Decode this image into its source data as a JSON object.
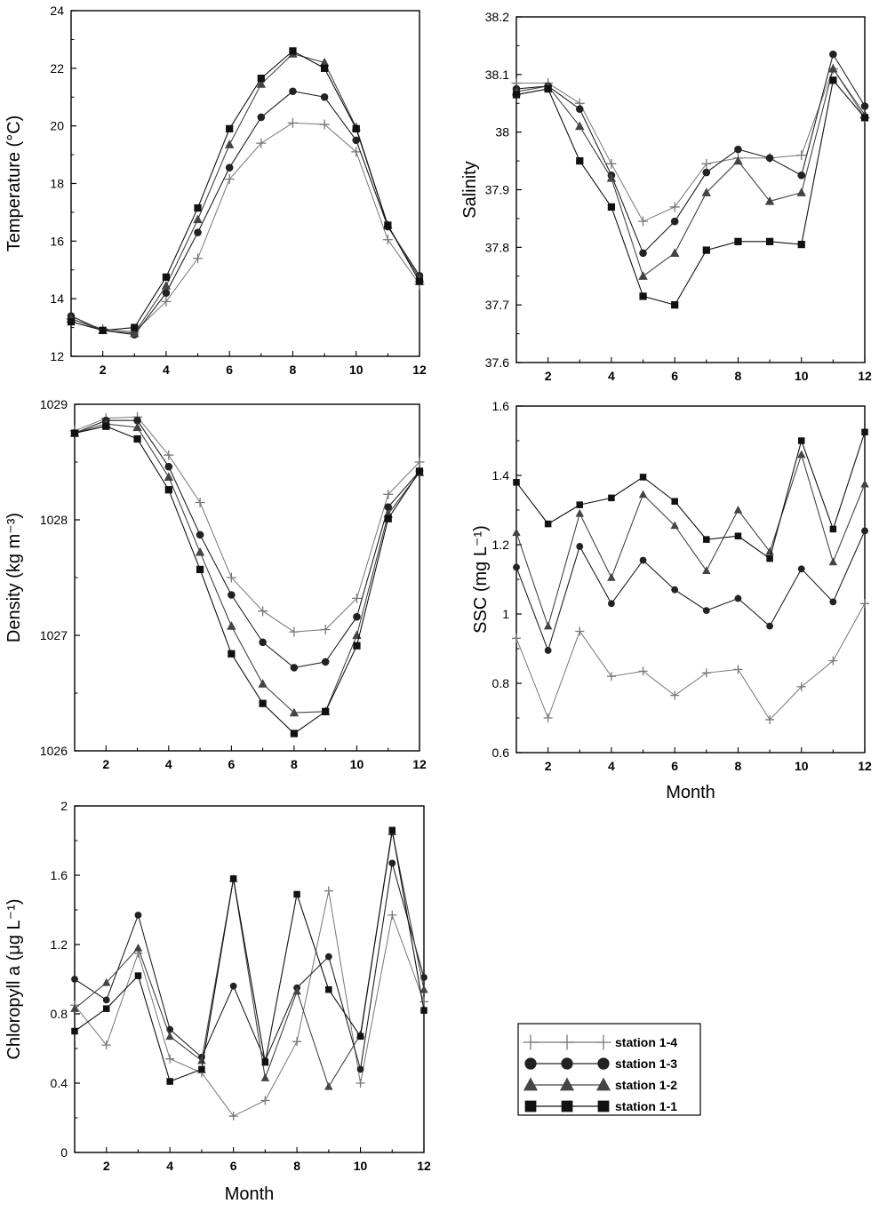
{
  "colors": {
    "axis": "#000000",
    "station_1_4": "#777777",
    "station_1_3": "#222222",
    "station_1_2": "#444444",
    "station_1_1": "#111111"
  },
  "legend": {
    "placement": "bottom-right",
    "entries": [
      {
        "label": "station 1-4",
        "marker": "plus"
      },
      {
        "label": "station 1-3",
        "marker": "circle"
      },
      {
        "label": "station 1-2",
        "marker": "triangle"
      },
      {
        "label": "station 1-1",
        "marker": "square"
      }
    ]
  },
  "chart_data": [
    {
      "type": "line",
      "ylabel": "Temperature (°C)",
      "xlabel": "",
      "ylim": [
        12,
        24
      ],
      "yticks": [
        "12",
        "14",
        "16",
        "18",
        "20",
        "22",
        "24"
      ],
      "xticks": [
        "2",
        "4",
        "6",
        "8",
        "10",
        "12"
      ],
      "x": [
        1,
        2,
        3,
        4,
        5,
        6,
        7,
        8,
        9,
        10,
        11,
        12
      ],
      "series": [
        {
          "name": "station 1-4",
          "marker": "plus",
          "values": [
            13.3,
            12.95,
            12.85,
            13.9,
            15.4,
            18.15,
            19.4,
            20.1,
            20.05,
            19.1,
            16.05,
            14.5
          ]
        },
        {
          "name": "station 1-3",
          "marker": "circle",
          "values": [
            13.4,
            12.9,
            12.75,
            14.2,
            16.3,
            18.55,
            20.3,
            21.2,
            21.0,
            19.5,
            16.5,
            14.8
          ]
        },
        {
          "name": "station 1-2",
          "marker": "triangle",
          "values": [
            13.3,
            12.9,
            12.8,
            14.45,
            16.75,
            19.35,
            21.45,
            22.5,
            22.2,
            19.95,
            16.55,
            14.7
          ]
        },
        {
          "name": "station 1-1",
          "marker": "square",
          "values": [
            13.2,
            12.9,
            13.0,
            14.75,
            17.15,
            19.9,
            21.65,
            22.6,
            22.0,
            19.9,
            16.55,
            14.6
          ]
        }
      ]
    },
    {
      "type": "line",
      "ylabel": "Salinity",
      "xlabel": "",
      "ylim": [
        37.6,
        38.2
      ],
      "yticks": [
        "37.6",
        "37.7",
        "37.8",
        "37.9",
        "38",
        "38.1",
        "38.2"
      ],
      "xticks": [
        "2",
        "4",
        "6",
        "8",
        "10",
        "12"
      ],
      "x": [
        1,
        2,
        3,
        4,
        5,
        6,
        7,
        8,
        9,
        10,
        11,
        12
      ],
      "series": [
        {
          "name": "station 1-4",
          "marker": "plus",
          "values": [
            38.085,
            38.085,
            38.05,
            37.945,
            37.845,
            37.87,
            37.945,
            37.955,
            37.955,
            37.96,
            38.11,
            38.025
          ]
        },
        {
          "name": "station 1-3",
          "marker": "circle",
          "values": [
            38.075,
            38.08,
            38.04,
            37.925,
            37.79,
            37.845,
            37.93,
            37.97,
            37.955,
            37.925,
            38.135,
            38.045
          ]
        },
        {
          "name": "station 1-2",
          "marker": "triangle",
          "values": [
            38.07,
            38.08,
            38.01,
            37.92,
            37.75,
            37.79,
            37.895,
            37.95,
            37.88,
            37.895,
            38.11,
            38.03
          ]
        },
        {
          "name": "station 1-1",
          "marker": "square",
          "values": [
            38.065,
            38.075,
            37.95,
            37.87,
            37.715,
            37.7,
            37.795,
            37.81,
            37.81,
            37.805,
            38.09,
            38.025
          ]
        }
      ]
    },
    {
      "type": "line",
      "ylabel": "Density (kg m⁻³)",
      "xlabel": "",
      "ylim": [
        1026,
        1029
      ],
      "yticks": [
        "1026",
        "1027",
        "1028",
        "1029"
      ],
      "xticks": [
        "2",
        "4",
        "6",
        "8",
        "10",
        "12"
      ],
      "x": [
        1,
        2,
        3,
        4,
        5,
        6,
        7,
        8,
        9,
        10,
        11,
        12
      ],
      "series": [
        {
          "name": "station 1-4",
          "marker": "plus",
          "values": [
            1028.77,
            1028.88,
            1028.89,
            1028.56,
            1028.15,
            1027.5,
            1027.21,
            1027.03,
            1027.05,
            1027.32,
            1028.22,
            1028.5
          ]
        },
        {
          "name": "station 1-3",
          "marker": "circle",
          "values": [
            1028.75,
            1028.86,
            1028.86,
            1028.46,
            1027.87,
            1027.35,
            1026.94,
            1026.72,
            1026.77,
            1027.16,
            1028.11,
            1028.42
          ]
        },
        {
          "name": "station 1-2",
          "marker": "triangle",
          "values": [
            1028.75,
            1028.83,
            1028.8,
            1028.37,
            1027.72,
            1027.08,
            1026.58,
            1026.33,
            1026.34,
            1027.0,
            1028.05,
            1028.41
          ]
        },
        {
          "name": "station 1-1",
          "marker": "square",
          "values": [
            1028.75,
            1028.81,
            1028.7,
            1028.26,
            1027.57,
            1026.84,
            1026.41,
            1026.15,
            1026.34,
            1026.91,
            1028.01,
            1028.42
          ]
        }
      ]
    },
    {
      "type": "line",
      "ylabel": "SSC (mg L⁻¹)",
      "xlabel": "Month",
      "ylim": [
        0.6,
        1.6
      ],
      "yticks": [
        "0.6",
        "0.8",
        "1",
        "1.2",
        "1.4",
        "1.6"
      ],
      "xticks": [
        "2",
        "4",
        "6",
        "8",
        "10",
        "12"
      ],
      "x": [
        1,
        2,
        3,
        4,
        5,
        6,
        7,
        8,
        9,
        10,
        11,
        12
      ],
      "series": [
        {
          "name": "station 1-4",
          "marker": "plus",
          "values": [
            0.93,
            0.7,
            0.95,
            0.82,
            0.835,
            0.765,
            0.83,
            0.84,
            0.695,
            0.79,
            0.865,
            1.03
          ]
        },
        {
          "name": "station 1-3",
          "marker": "circle",
          "values": [
            1.135,
            0.895,
            1.195,
            1.03,
            1.155,
            1.07,
            1.01,
            1.045,
            0.965,
            1.13,
            1.035,
            1.24
          ]
        },
        {
          "name": "station 1-2",
          "marker": "triangle",
          "values": [
            1.235,
            0.965,
            1.29,
            1.105,
            1.345,
            1.255,
            1.125,
            1.3,
            1.18,
            1.46,
            1.15,
            1.375
          ]
        },
        {
          "name": "station 1-1",
          "marker": "square",
          "values": [
            1.38,
            1.26,
            1.315,
            1.335,
            1.395,
            1.325,
            1.215,
            1.225,
            1.16,
            1.5,
            1.245,
            1.525
          ]
        }
      ]
    },
    {
      "type": "line",
      "ylabel": "Chloropyll a (μg L⁻¹)",
      "xlabel": "Month",
      "ylim": [
        0,
        2
      ],
      "yticks": [
        "0",
        "0.4",
        "0.8",
        "1.2",
        "1.6",
        "2"
      ],
      "xticks": [
        "2",
        "4",
        "6",
        "8",
        "10",
        "12"
      ],
      "x": [
        1,
        2,
        3,
        4,
        5,
        6,
        7,
        8,
        9,
        10,
        11,
        12
      ],
      "series": [
        {
          "name": "station 1-4",
          "marker": "plus",
          "values": [
            0.85,
            0.62,
            1.15,
            0.54,
            0.46,
            0.21,
            0.3,
            0.64,
            1.51,
            0.4,
            1.37,
            0.87
          ]
        },
        {
          "name": "station 1-3",
          "marker": "circle",
          "values": [
            1.0,
            0.88,
            1.37,
            0.71,
            0.55,
            0.96,
            0.53,
            0.95,
            1.13,
            0.48,
            1.67,
            1.01
          ]
        },
        {
          "name": "station 1-2",
          "marker": "triangle",
          "values": [
            0.83,
            0.98,
            1.18,
            0.67,
            0.53,
            1.58,
            0.43,
            0.93,
            0.38,
            0.68,
            1.85,
            0.94
          ]
        },
        {
          "name": "station 1-1",
          "marker": "square",
          "values": [
            0.7,
            0.83,
            1.02,
            0.41,
            0.48,
            1.58,
            0.52,
            1.49,
            0.94,
            0.67,
            1.86,
            0.82
          ]
        }
      ]
    }
  ]
}
